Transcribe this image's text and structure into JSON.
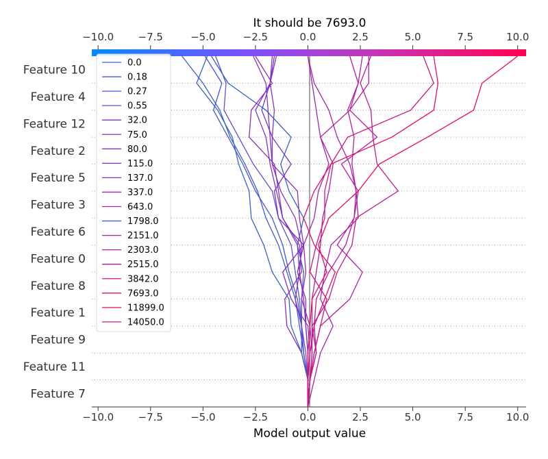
{
  "chart_data": {
    "type": "line",
    "subtype": "shap-decision-plot",
    "title": "It should be 7693.0",
    "xlabel": "Model output value",
    "xlim": [
      -10.3,
      10.4
    ],
    "base_value": 0.0,
    "x_ticks": [
      "−10.0",
      "−7.5",
      "−5.0",
      "−2.5",
      "0.0",
      "2.5",
      "5.0",
      "7.5",
      "10.0"
    ],
    "x_tick_values": [
      -10,
      -7.5,
      -5,
      -2.5,
      0,
      2.5,
      5,
      7.5,
      10
    ],
    "features": [
      "Feature 10",
      "Feature 4",
      "Feature 12",
      "Feature 2",
      "Feature 5",
      "Feature 3",
      "Feature 6",
      "Feature 0",
      "Feature 8",
      "Feature 1",
      "Feature 9",
      "Feature 11",
      "Feature 7"
    ],
    "colormap": [
      "#008bfa",
      "#7c52ff",
      "#c535b8",
      "#ff0052"
    ],
    "legend_placement": "upper-left",
    "grid": "dotted horizontal",
    "series": [
      {
        "name": "0.0",
        "color": "#3560d0",
        "values": [
          -4.6,
          -3.8,
          -2.0,
          -0.8,
          -1.3,
          -0.9,
          -0.2,
          -0.5,
          -0.2,
          -0.3,
          -0.3,
          -0.2,
          0.0,
          0.0
        ]
      },
      {
        "name": "0.18",
        "color": "#3d5ad6",
        "values": [
          -6.0,
          -5.0,
          -4.2,
          -3.7,
          -3.0,
          -2.4,
          -2.0,
          -1.4,
          -1.0,
          -0.6,
          -0.4,
          -0.2,
          0.0,
          0.0
        ]
      },
      {
        "name": "0.27",
        "color": "#4355d8",
        "values": [
          -4.9,
          -4.1,
          -4.5,
          -3.8,
          -3.1,
          -2.5,
          -1.7,
          -1.2,
          -0.9,
          -0.5,
          -0.3,
          -0.2,
          0.0,
          0.0
        ]
      },
      {
        "name": "0.55",
        "color": "#5a4ed8",
        "values": [
          -4.4,
          -3.9,
          -4.0,
          -3.3,
          -2.6,
          -1.7,
          -1.4,
          -0.8,
          -0.6,
          -0.4,
          -0.3,
          -0.3,
          0.0,
          0.0
        ]
      },
      {
        "name": "32.0",
        "color": "#7a36c8",
        "values": [
          -1.7,
          -1.8,
          -2.5,
          -2.0,
          -1.8,
          -1.5,
          -1.2,
          -0.5,
          -0.4,
          -0.6,
          -0.3,
          -0.1,
          0.0,
          0.0
        ]
      },
      {
        "name": "75.0",
        "color": "#8a2fbf",
        "values": [
          -1.5,
          -1.8,
          -1.6,
          -1.7,
          -1.7,
          -1.3,
          -0.6,
          -0.3,
          -0.4,
          -0.2,
          -0.1,
          0.0,
          0.0,
          0.0
        ]
      },
      {
        "name": "80.0",
        "color": "#8e2cbd",
        "values": [
          -2.5,
          -1.7,
          -2.7,
          -2.8,
          -1.6,
          -1.4,
          -1.2,
          -0.4,
          -0.3,
          -1.1,
          -1.0,
          -0.3,
          0.0,
          0.0
        ]
      },
      {
        "name": "115.0",
        "color": "#7733c6",
        "values": [
          -1.6,
          -1.8,
          -2.2,
          -1.7,
          -0.8,
          -1.6,
          -1.4,
          -0.2,
          -0.5,
          -0.1,
          -0.1,
          0.0,
          0.0,
          0.0
        ]
      },
      {
        "name": "137.0",
        "color": "#8330c2",
        "values": [
          -2.6,
          -2.0,
          -1.9,
          -1.8,
          -1.7,
          -0.5,
          -0.4,
          -0.2,
          -1.2,
          -0.8,
          0.0,
          0.1,
          0.0,
          0.0
        ]
      },
      {
        "name": "337.0",
        "color": "#a024b0",
        "values": [
          0.0,
          0.2,
          0.4,
          0.6,
          1.0,
          0.5,
          0.3,
          -0.2,
          -0.1,
          -0.3,
          0.1,
          0.2,
          0.1,
          0.0
        ]
      },
      {
        "name": "643.0",
        "color": "#a821aa",
        "values": [
          0.0,
          0.3,
          1.0,
          1.4,
          2.0,
          2.3,
          2.4,
          1.1,
          0.8,
          0.6,
          1.2,
          0.6,
          0.3,
          0.0
        ]
      },
      {
        "name": "1798.0",
        "color": "#3262d4",
        "values": [
          -4.8,
          -5.3,
          -4.3,
          -3.6,
          -3.3,
          -2.8,
          -2.7,
          -2.1,
          -1.7,
          -0.9,
          -0.8,
          -0.3,
          0.0,
          0.0
        ]
      },
      {
        "name": "2151.0",
        "color": "#b01ea4",
        "values": [
          2.6,
          2.4,
          2.0,
          0.6,
          1.2,
          1.0,
          0.7,
          0.6,
          0.4,
          0.2,
          0.2,
          0.2,
          0.1,
          0.0
        ]
      },
      {
        "name": "2303.0",
        "color": "#b21da2",
        "values": [
          2.0,
          2.4,
          1.9,
          2.2,
          2.1,
          2.3,
          2.2,
          1.4,
          2.6,
          2.0,
          0.6,
          0.3,
          0.1,
          0.0
        ]
      },
      {
        "name": "2515.0",
        "color": "#b81b9e",
        "values": [
          2.9,
          2.9,
          2.0,
          3.3,
          1.6,
          2.4,
          2.2,
          1.8,
          1.0,
          0.4,
          0.3,
          0.4,
          0.1,
          0.0
        ]
      },
      {
        "name": "3842.0",
        "color": "#d3127e",
        "values": [
          5.5,
          6.0,
          4.9,
          1.9,
          1.1,
          0.8,
          0.8,
          0.4,
          0.1,
          0.9,
          0.6,
          0.3,
          0.1,
          0.0
        ]
      },
      {
        "name": "7693.0",
        "color": "#e80a66",
        "values": [
          6.0,
          6.2,
          6.0,
          4.0,
          1.1,
          0.3,
          -0.2,
          0.3,
          1.3,
          0.8,
          0.3,
          0.1,
          0.0,
          0.0
        ]
      },
      {
        "name": "11899.0",
        "color": "#ee075e",
        "values": [
          10.0,
          8.3,
          7.9,
          5.7,
          3.4,
          2.4,
          1.0,
          0.5,
          0.9,
          0.2,
          0.1,
          0.0,
          0.0,
          0.0
        ]
      },
      {
        "name": "14050.0",
        "color": "#c2188f",
        "values": [
          3.0,
          2.5,
          3.0,
          3.1,
          3.3,
          4.3,
          2.3,
          2.1,
          1.4,
          1.0,
          0.2,
          0.4,
          0.1,
          0.0
        ]
      }
    ]
  }
}
